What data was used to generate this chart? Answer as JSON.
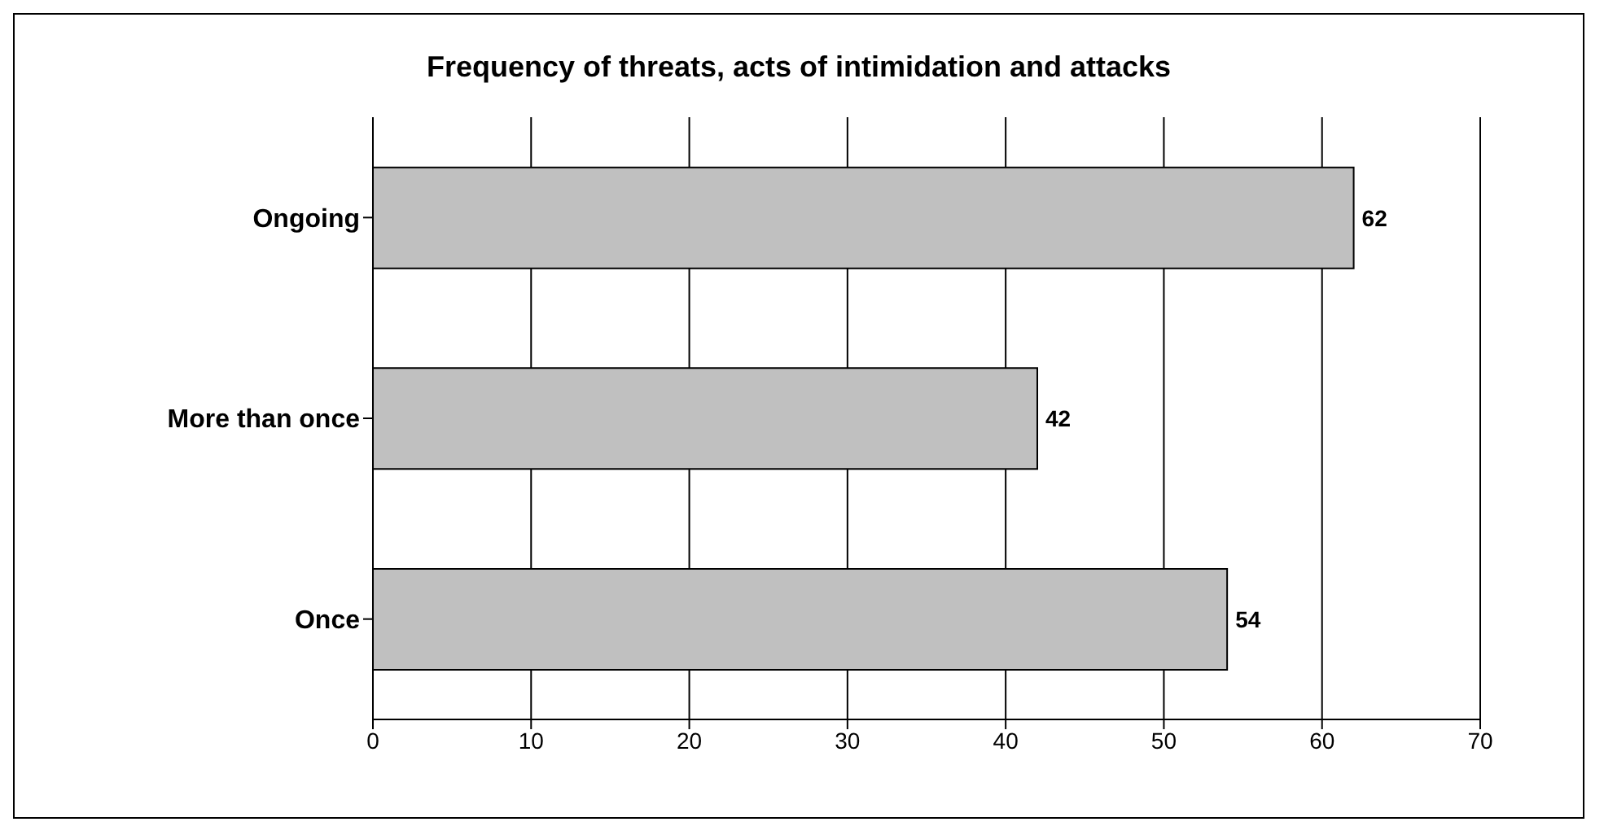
{
  "chart_data": {
    "type": "bar",
    "orientation": "horizontal",
    "title": "Frequency of threats, acts of intimidation and attacks",
    "categories": [
      "Ongoing",
      "More than once",
      "Once"
    ],
    "values": [
      62,
      42,
      54
    ],
    "color": "#c0c0c0",
    "xlim": [
      0,
      70
    ],
    "xticks": [
      0,
      10,
      20,
      30,
      40,
      50,
      60,
      70
    ],
    "grid": "x",
    "data_labels": true
  }
}
